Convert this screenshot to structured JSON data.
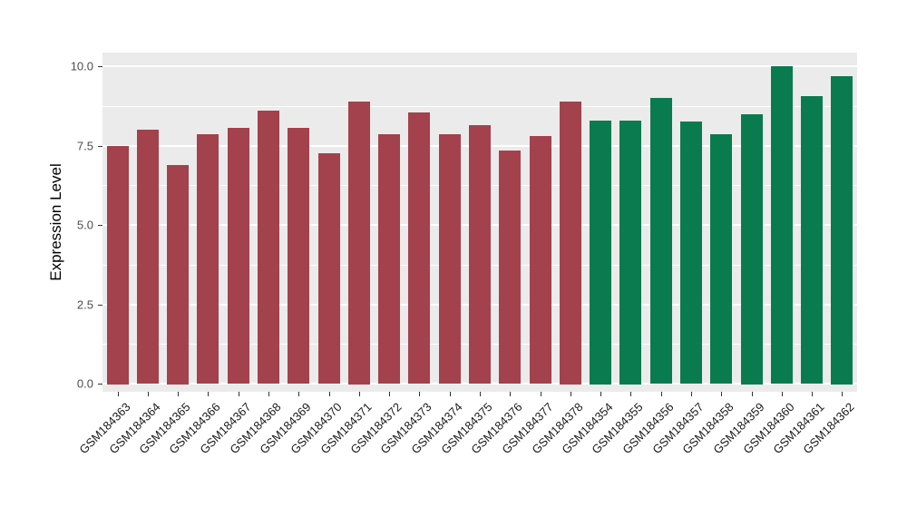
{
  "chart_data": {
    "type": "bar",
    "title": "",
    "xlabel": "",
    "ylabel": "Expression Level",
    "ylim": [
      0,
      10.4
    ],
    "yticks": [
      0.0,
      2.5,
      5.0,
      7.5,
      10.0
    ],
    "ytick_labels": [
      "0.0",
      "2.5",
      "5.0",
      "7.5",
      "10.0"
    ],
    "yticks_minor": [
      1.25,
      3.75,
      6.25,
      8.75
    ],
    "grid": true,
    "legend_position": "none",
    "panel_background": "#EBEBEB",
    "gridline_color": "#FFFFFF",
    "groups": {
      "group1": {
        "color": "#A3414D"
      },
      "group2": {
        "color": "#0A7B4F"
      }
    },
    "categories": [
      "GSM184363",
      "GSM184364",
      "GSM184365",
      "GSM184366",
      "GSM184367",
      "GSM184368",
      "GSM184369",
      "GSM184370",
      "GSM184371",
      "GSM184372",
      "GSM184373",
      "GSM184374",
      "GSM184375",
      "GSM184376",
      "GSM184377",
      "GSM184378",
      "GSM184354",
      "GSM184355",
      "GSM184356",
      "GSM184357",
      "GSM184358",
      "GSM184359",
      "GSM184360",
      "GSM184361",
      "GSM184362"
    ],
    "values": [
      7.5,
      8.0,
      6.9,
      7.85,
      8.05,
      8.6,
      8.05,
      7.25,
      8.9,
      7.85,
      8.55,
      7.85,
      8.15,
      7.35,
      7.8,
      8.9,
      8.3,
      8.3,
      9.0,
      8.25,
      7.85,
      8.5,
      10.0,
      9.05,
      9.7
    ],
    "bar_groups": [
      "group1",
      "group1",
      "group1",
      "group1",
      "group1",
      "group1",
      "group1",
      "group1",
      "group1",
      "group1",
      "group1",
      "group1",
      "group1",
      "group1",
      "group1",
      "group1",
      "group2",
      "group2",
      "group2",
      "group2",
      "group2",
      "group2",
      "group2",
      "group2",
      "group2"
    ]
  },
  "layout_note": "bar chart of expression level per GEO sample"
}
